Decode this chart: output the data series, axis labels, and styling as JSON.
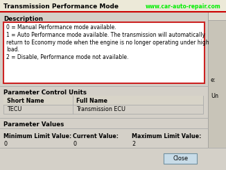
{
  "title": "Transmission Performance Mode",
  "watermark": "www.car-auto-repair.com",
  "watermark_color": "#00ee00",
  "description_label": "Description",
  "description_lines": [
    "0 = Manual Performance mode available.",
    "1 = Auto Performance mode available. The transmission will automatically",
    "return to Economy mode when the engine is no longer operating under high",
    "load.",
    "2 = Disable, Performance mode not available."
  ],
  "param_control_label": "Parameter Control Units",
  "table_headers": [
    "Short Name",
    "Full Name"
  ],
  "table_row": [
    "TECU",
    "Transmission ECU"
  ],
  "param_values_label": "Parameter Values",
  "min_label": "Minimum Limit Value:",
  "min_value": "0",
  "cur_label": "Current Value:",
  "cur_value": "0",
  "max_label": "Maximum Limit Value:",
  "max_value": "2",
  "close_button": "Close",
  "bg_color": "#d4d0c8",
  "title_bg": "#ece9d8",
  "title_bar_color": "#0a246a",
  "white": "#ffffff",
  "desc_box_bg": "#ffffff",
  "box_border": "#cc2222",
  "table_header_bg": "#d8d4c8",
  "separator_color": "#aaaaaa",
  "text_color": "#000000",
  "title_text_color": "#000000",
  "watermark_text_color": "#00dd00",
  "font_size": 5.8,
  "title_font_size": 6.5,
  "close_btn_bg": "#c8dce8",
  "close_btn_border": "#7090a0",
  "right_panel_bg": "#c8c4b8",
  "right_panel_scroll_bg": "#e0dcd0",
  "red_line_color": "#cc0000"
}
